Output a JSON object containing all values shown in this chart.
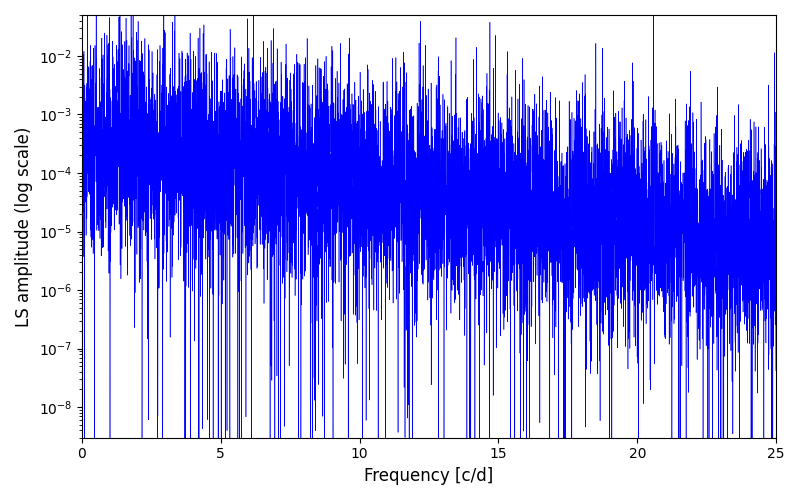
{
  "xlabel": "Frequency [c/d]",
  "ylabel": "LS amplitude (log scale)",
  "xlim": [
    0,
    25
  ],
  "ylim": [
    3e-09,
    0.05
  ],
  "line_color": "#0000FF",
  "background_color": "#ffffff",
  "figsize": [
    8.0,
    5.0
  ],
  "dpi": 100,
  "freq_min": 0.0,
  "freq_max": 25.0,
  "n_points": 8000,
  "seed": 77
}
